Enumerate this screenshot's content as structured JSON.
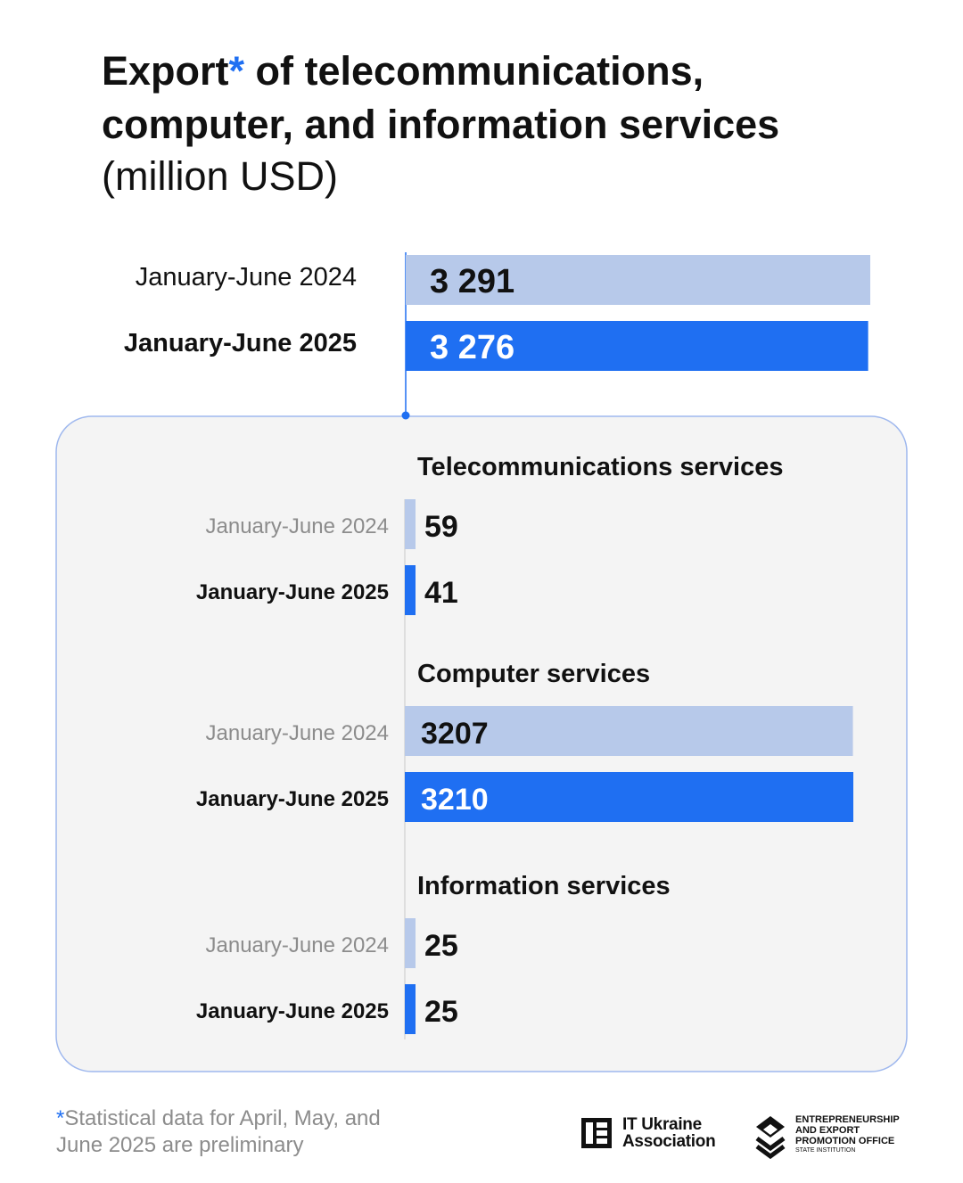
{
  "title": {
    "part1": "Export",
    "star": "*",
    "part2": " of telecommunications, computer, and information services",
    "units": "(million USD)"
  },
  "chart_data": {
    "type": "bar",
    "orientation": "horizontal",
    "units": "million USD",
    "colors": {
      "2024": "#b7c9ea",
      "2025": "#1f6ff2",
      "panel_bg": "#f4f4f4",
      "panel_border": "#9fb8ee"
    },
    "total": {
      "categories": [
        "January-June 2024",
        "January-June 2025"
      ],
      "values": [
        3291,
        3276
      ],
      "labels": [
        "3 291",
        "3 276"
      ]
    },
    "groups": [
      {
        "name": "Telecommunications services",
        "categories": [
          "January-June 2024",
          "January-June 2025"
        ],
        "values": [
          59,
          41
        ],
        "labels": [
          "59",
          "41"
        ]
      },
      {
        "name": "Computer services",
        "categories": [
          "January-June 2024",
          "January-June 2025"
        ],
        "values": [
          3207,
          3210
        ],
        "labels": [
          "3207",
          "3210"
        ]
      },
      {
        "name": "Information services",
        "categories": [
          "January-June 2024",
          "January-June 2025"
        ],
        "values": [
          25,
          25
        ],
        "labels": [
          "25",
          "25"
        ]
      }
    ]
  },
  "footnote": {
    "star": "*",
    "text": "Statistical data for April, May, and June 2025 are preliminary"
  },
  "logos": {
    "it_ukraine": {
      "line1": "IT Ukraine",
      "line2": "Association"
    },
    "eepo": {
      "line1": "ENTREPRENEURSHIP",
      "line2": "AND EXPORT",
      "line3": "PROMOTION OFFICE",
      "line4": "STATE INSTITUTION"
    }
  }
}
